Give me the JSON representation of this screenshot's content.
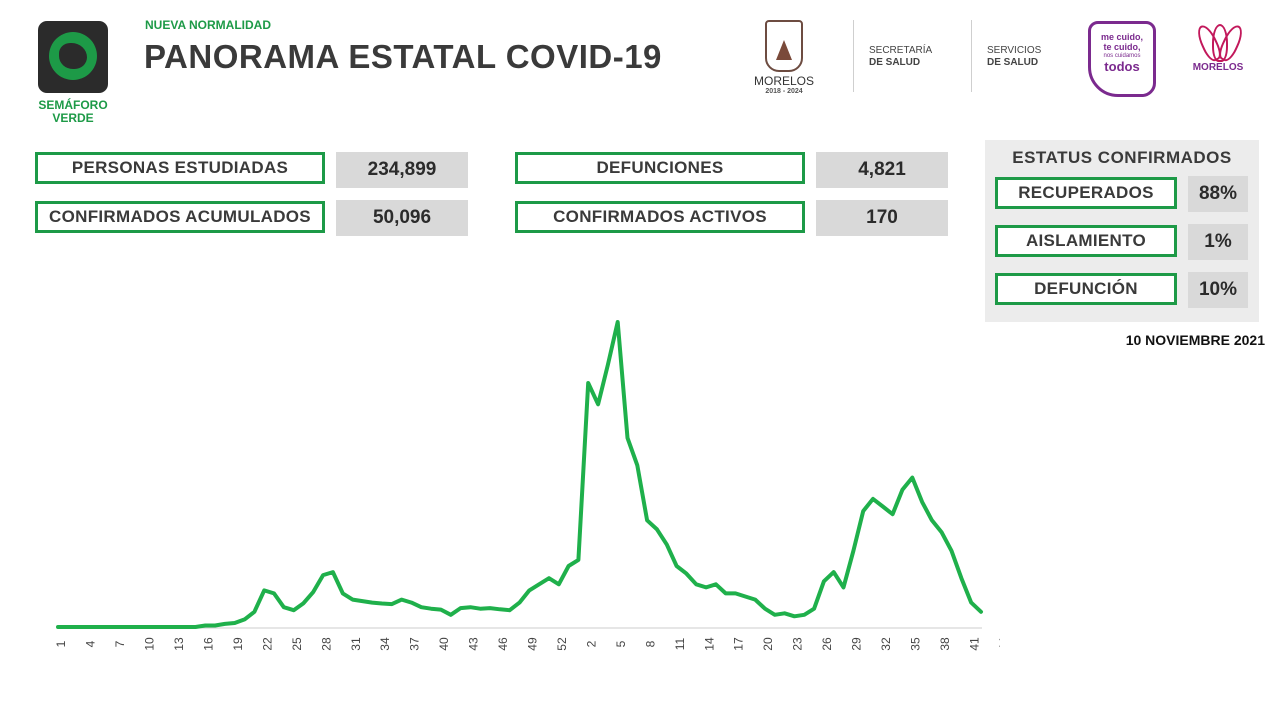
{
  "header": {
    "subtitle": "NUEVA NORMALIDAD",
    "title": "PANORAMA ESTATAL COVID-19",
    "semaforo": {
      "line1": "SEMÁFORO",
      "line2": "VERDE",
      "color": "#1d9a47",
      "icon": "semaforo-map-icon"
    },
    "logos": {
      "morelos": {
        "name": "MORELOS",
        "years": "2018 - 2024"
      },
      "secretaria": {
        "line1": "SECRETARÍA",
        "line2": "DE SALUD"
      },
      "servicios": {
        "line1": "SERVICIOS",
        "line2": "DE SALUD"
      },
      "me_cuido": {
        "line1": "me cuido,",
        "line2": "te cuido,",
        "line3": "nos cuidamos",
        "line4": "todos"
      },
      "morelos_flor": {
        "name": "MORELOS"
      }
    }
  },
  "stats": {
    "personas_estudiadas": {
      "label": "PERSONAS ESTUDIADAS",
      "value": "234,899"
    },
    "confirmados_acumulados": {
      "label": "CONFIRMADOS ACUMULADOS",
      "value": "50,096"
    },
    "defunciones": {
      "label": "DEFUNCIONES",
      "value": "4,821"
    },
    "confirmados_activos": {
      "label": "CONFIRMADOS ACTIVOS",
      "value": "170"
    }
  },
  "status": {
    "title": "ESTATUS CONFIRMADOS",
    "items": [
      {
        "label": "RECUPERADOS",
        "value": "88%"
      },
      {
        "label": "AISLAMIENTO",
        "value": "1%"
      },
      {
        "label": "DEFUNCIÓN",
        "value": "10%"
      }
    ]
  },
  "date": "10 NOVIEMBRE 2021",
  "colors": {
    "accent": "#1d9a47",
    "title": "#3a3a3a",
    "value_bg": "#d9d9d9"
  },
  "chart_data": {
    "type": "line",
    "title": "",
    "xlabel": "",
    "ylabel": "",
    "grid": false,
    "tick_labels": [
      "1",
      "4",
      "7",
      "10",
      "13",
      "16",
      "19",
      "22",
      "25",
      "28",
      "31",
      "34",
      "37",
      "40",
      "43",
      "46",
      "49",
      "52",
      "2",
      "5",
      "8",
      "11",
      "14",
      "17",
      "20",
      "23",
      "26",
      "29",
      "32",
      "35",
      "38",
      "41",
      "44"
    ],
    "tick_every": 3,
    "ylim": [
      0,
      100
    ],
    "series": [
      {
        "color": "#1fb04b",
        "values": [
          0,
          0,
          0,
          0,
          0,
          0,
          0,
          0,
          0,
          0,
          0,
          0,
          0,
          0,
          0,
          0.5,
          0.5,
          1,
          1.3,
          2.5,
          5,
          12,
          11,
          6.5,
          5.5,
          7.8,
          11.5,
          17,
          18,
          11,
          9,
          8.5,
          8,
          7.7,
          7.5,
          9,
          8,
          6.5,
          6,
          5.7,
          4,
          6.2,
          6.5,
          6,
          6.2,
          5.8,
          5.5,
          8,
          12,
          14,
          16,
          14,
          20,
          22,
          80,
          73,
          86,
          100,
          62,
          53,
          35,
          32,
          27,
          20,
          17.5,
          14,
          13,
          14,
          11,
          11,
          10,
          9,
          6,
          4,
          4.5,
          3.5,
          4,
          6,
          15,
          18,
          13,
          25,
          38,
          42,
          39.5,
          37,
          45,
          49,
          41,
          35,
          31,
          25,
          16,
          8,
          5
        ]
      }
    ]
  }
}
